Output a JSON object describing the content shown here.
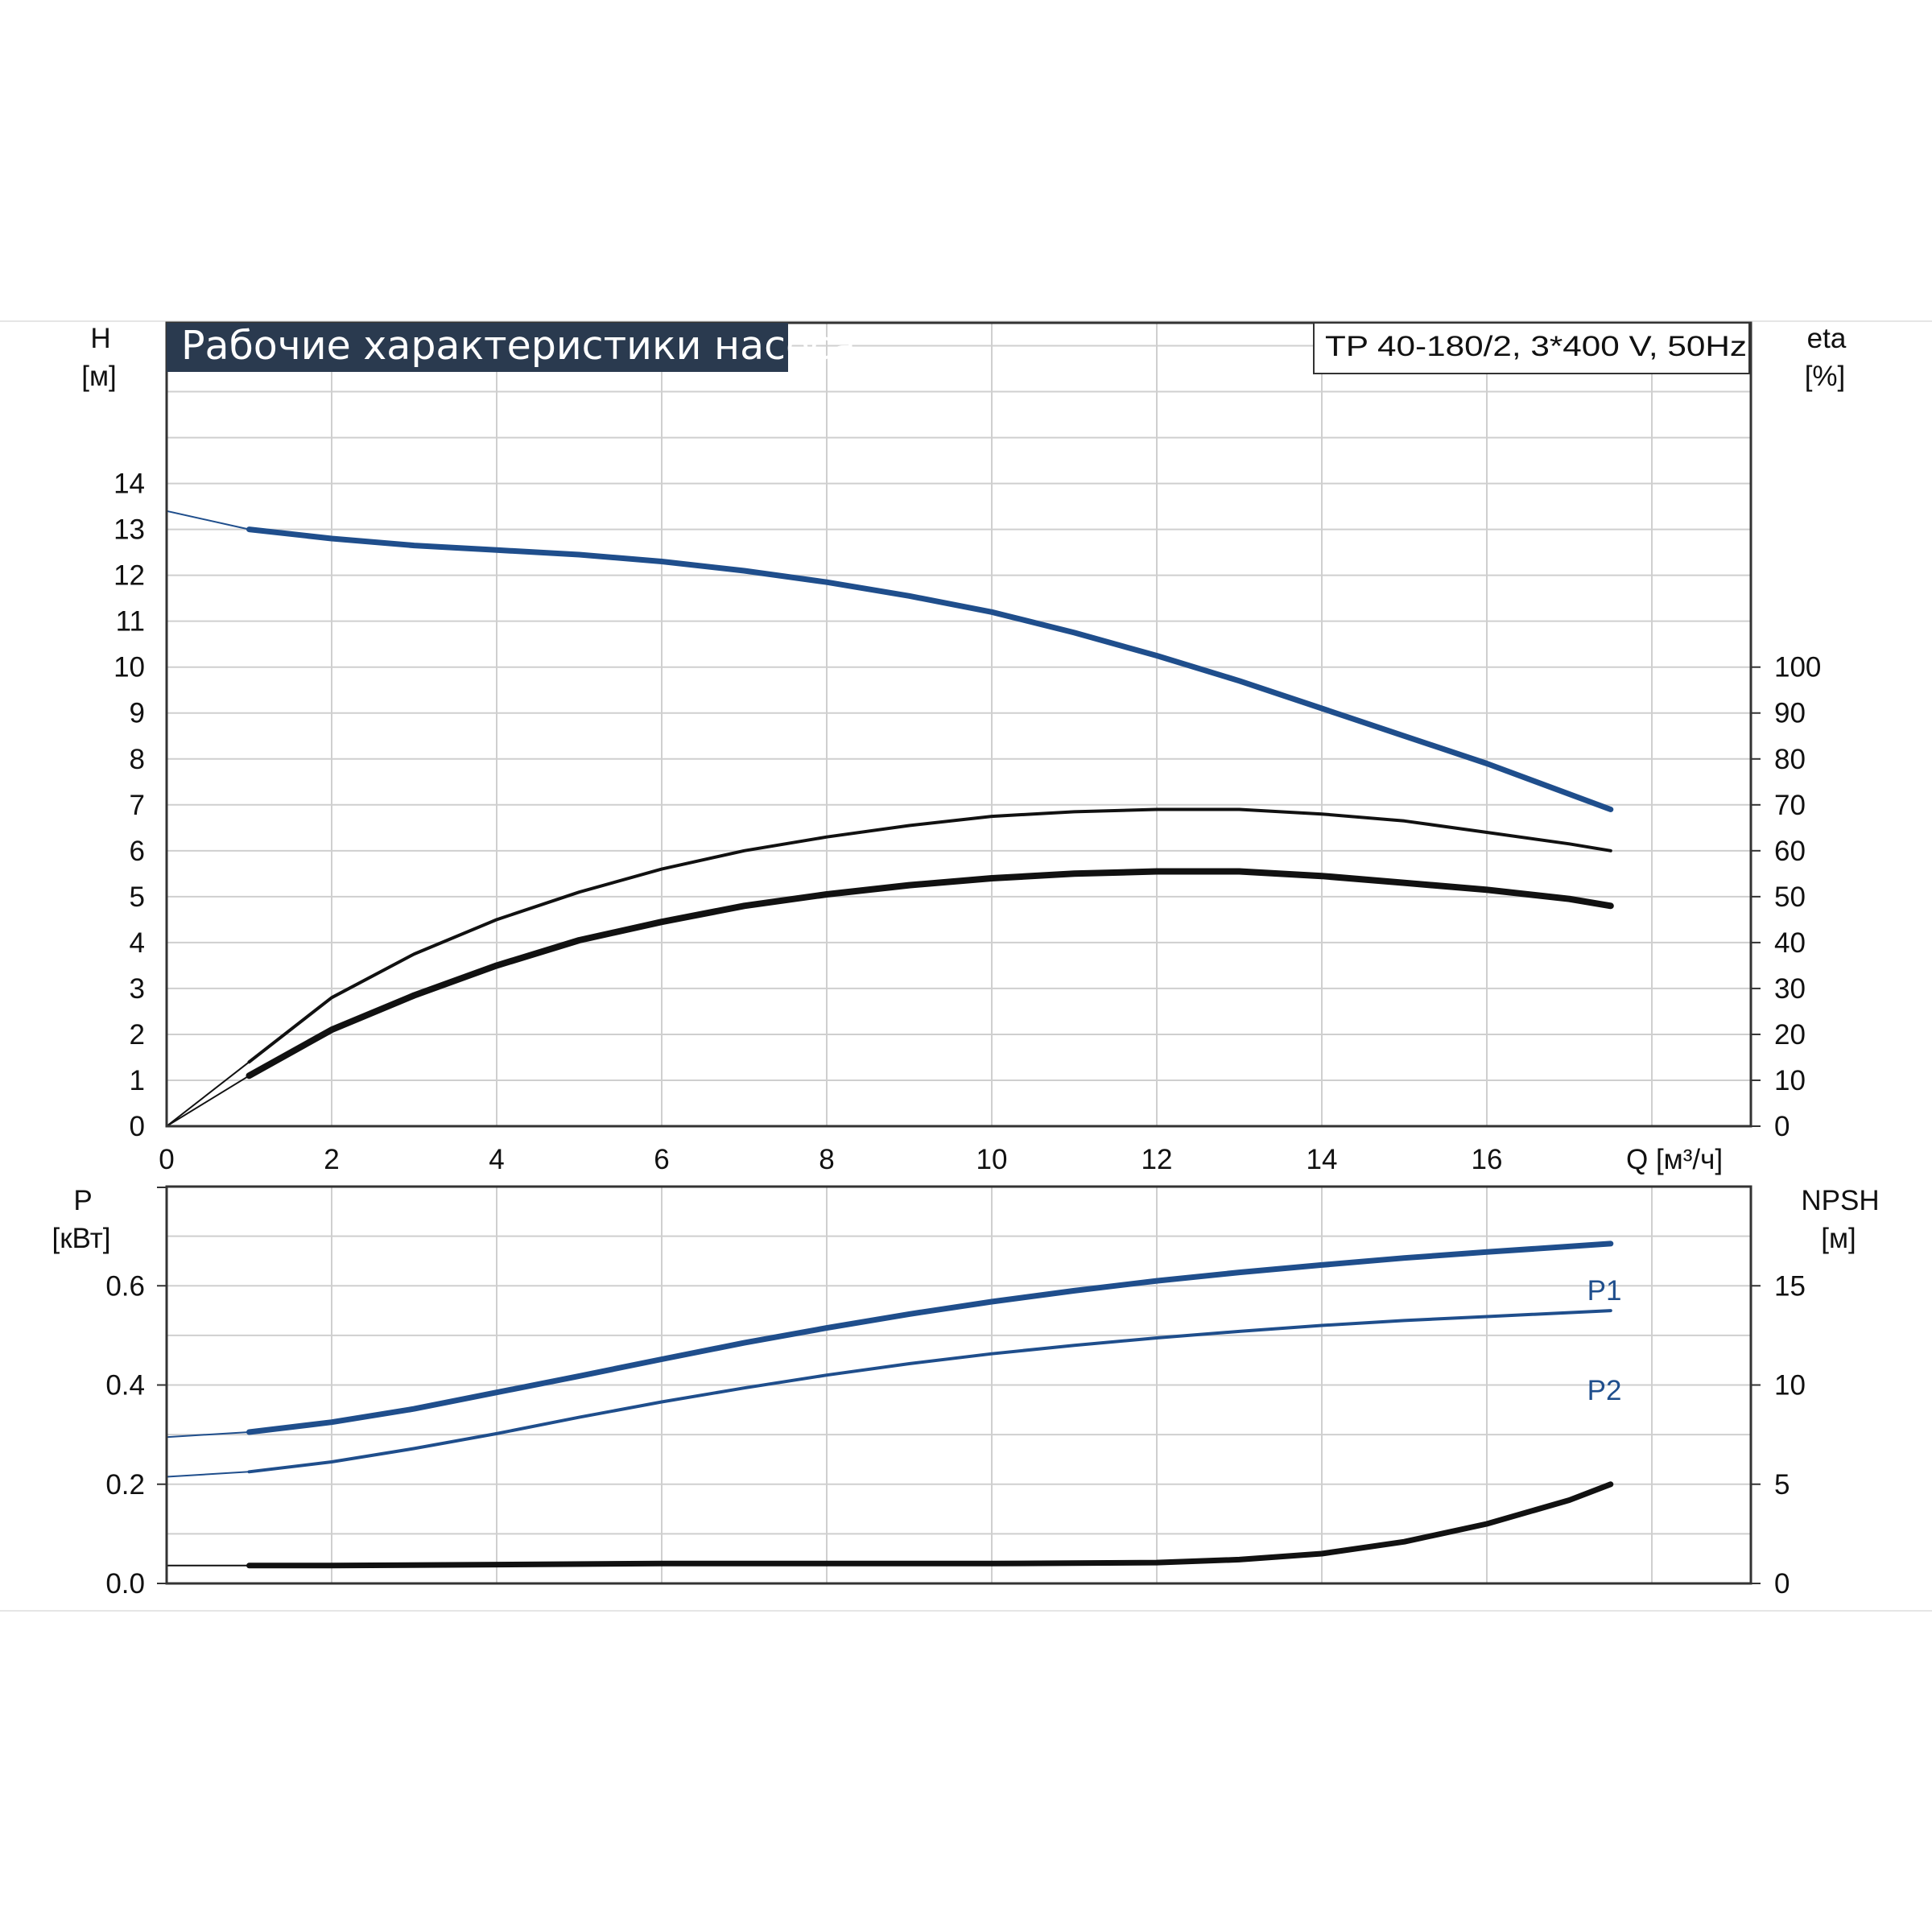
{
  "chart_data": [
    {
      "type": "line",
      "title": "Рабочие характеристики насоса",
      "model": "TP 40-180/2, 3*400 V, 50Hz",
      "xlabel": "Q [м³/ч]",
      "ylabel_left": {
        "name": "H",
        "unit": "[м]"
      },
      "ylabel_right": {
        "name": "eta",
        "unit": "[%]"
      },
      "xlim": [
        0,
        19.2
      ],
      "ylim_left": [
        0,
        17.5
      ],
      "ylim_right": [
        0,
        175
      ],
      "x_ticks": [
        "0",
        "2",
        "4",
        "6",
        "8",
        "10",
        "12",
        "14",
        "16"
      ],
      "y_ticks_left": [
        "0",
        "1",
        "2",
        "3",
        "4",
        "5",
        "6",
        "7",
        "8",
        "9",
        "10",
        "11",
        "12",
        "13",
        "14"
      ],
      "y_ticks_right": [
        "0",
        "10",
        "20",
        "30",
        "40",
        "50",
        "60",
        "70",
        "80",
        "90",
        "100"
      ],
      "grid": true,
      "colors": {
        "head": "#1f4e8c",
        "eta": "#111111",
        "grid": "#cfcfcf"
      },
      "series": [
        {
          "key": "head",
          "axis": "left",
          "x": [
            0,
            1,
            2,
            3,
            4,
            5,
            6,
            7,
            8,
            9,
            10,
            11,
            12,
            13,
            14,
            15,
            16,
            17.5
          ],
          "y": [
            13.4,
            13.0,
            12.8,
            12.65,
            12.55,
            12.45,
            12.3,
            12.1,
            11.85,
            11.55,
            11.2,
            10.75,
            10.25,
            9.7,
            9.1,
            8.5,
            7.9,
            6.9
          ]
        },
        {
          "key": "eta_thin",
          "axis": "right",
          "x": [
            1,
            2,
            3,
            4,
            5,
            6,
            7,
            8,
            9,
            10,
            11,
            12,
            13,
            14,
            15,
            16,
            17,
            17.5
          ],
          "y": [
            14,
            28,
            37.5,
            45,
            51,
            56,
            60,
            63,
            65.5,
            67.5,
            68.5,
            69,
            69,
            68,
            66.5,
            64,
            61.5,
            60
          ]
        },
        {
          "key": "eta_thick",
          "axis": "right",
          "x": [
            1,
            2,
            3,
            4,
            5,
            6,
            7,
            8,
            9,
            10,
            11,
            12,
            13,
            14,
            15,
            16,
            17,
            17.5
          ],
          "y": [
            11,
            21,
            28.5,
            35,
            40.5,
            44.5,
            48,
            50.5,
            52.5,
            54,
            55,
            55.5,
            55.5,
            54.5,
            53,
            51.5,
            49.5,
            48
          ]
        },
        {
          "key": "eta_ext",
          "axis": "right",
          "x": [
            0,
            1
          ],
          "y": [
            0,
            14
          ]
        }
      ]
    },
    {
      "type": "line",
      "ylabel_left": {
        "name": "P",
        "unit": "[кВт]"
      },
      "ylabel_right": {
        "name": "NPSH",
        "unit": "[м]"
      },
      "xlim": [
        0,
        19.2
      ],
      "ylim_left": [
        0,
        0.8
      ],
      "ylim_right": [
        0,
        20
      ],
      "y_ticks_left": [
        "0.0",
        "0.2",
        "0.4",
        "0.6"
      ],
      "y_ticks_right": [
        "0",
        "5",
        "10",
        "15"
      ],
      "grid": true,
      "series": [
        {
          "key": "p1",
          "name": "P1",
          "axis": "left",
          "x": [
            0,
            1,
            2,
            3,
            4,
            5,
            6,
            7,
            8,
            9,
            10,
            11,
            12,
            13,
            14,
            15,
            16,
            17.5
          ],
          "y": [
            0.295,
            0.305,
            0.325,
            0.352,
            0.385,
            0.418,
            0.452,
            0.485,
            0.515,
            0.543,
            0.568,
            0.59,
            0.61,
            0.627,
            0.642,
            0.656,
            0.668,
            0.685
          ]
        },
        {
          "key": "p2",
          "name": "P2",
          "axis": "left",
          "x": [
            0,
            1,
            2,
            3,
            4,
            5,
            6,
            7,
            8,
            9,
            10,
            11,
            12,
            13,
            14,
            15,
            16,
            17.5
          ],
          "y": [
            0.215,
            0.225,
            0.245,
            0.272,
            0.302,
            0.335,
            0.366,
            0.394,
            0.42,
            0.443,
            0.463,
            0.48,
            0.495,
            0.508,
            0.52,
            0.53,
            0.538,
            0.55
          ]
        },
        {
          "key": "npsh",
          "axis": "right",
          "x": [
            0,
            1,
            2,
            4,
            6,
            8,
            10,
            12,
            13,
            14,
            15,
            16,
            17,
            17.5
          ],
          "y": [
            0.9,
            0.9,
            0.9,
            0.95,
            1.0,
            1.0,
            1.0,
            1.05,
            1.2,
            1.5,
            2.1,
            3.0,
            4.2,
            5.0
          ]
        }
      ]
    }
  ]
}
